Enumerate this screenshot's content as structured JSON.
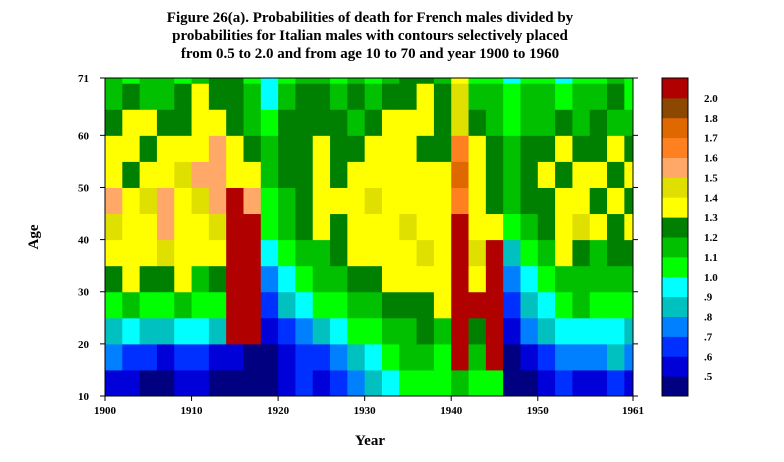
{
  "chart_data": {
    "type": "heatmap",
    "title": [
      "Figure 26(a). Probabilities of death for French males divided by",
      "probabilities for Italian males with contours selectively placed",
      "from 0.5 to 2.0 and from age 10 to 70 and year 1900 to 1960"
    ],
    "xlabel": "Year",
    "ylabel": "Age",
    "xlim": [
      1900,
      1961
    ],
    "ylim": [
      10,
      71
    ],
    "xticks": [
      1900,
      1910,
      1920,
      1930,
      1940,
      1950,
      1961
    ],
    "yticks": [
      10,
      20,
      30,
      40,
      50,
      60,
      71
    ],
    "xbins": [
      1900,
      1902,
      1904,
      1906,
      1908,
      1910,
      1912,
      1914,
      1916,
      1918,
      1920,
      1922,
      1924,
      1926,
      1928,
      1930,
      1932,
      1934,
      1936,
      1938,
      1940,
      1942,
      1944,
      1946,
      1948,
      1950,
      1952,
      1954,
      1956,
      1958,
      1960,
      1961
    ],
    "ybins": [
      10,
      15,
      20,
      25,
      30,
      35,
      40,
      45,
      50,
      55,
      60,
      65,
      70,
      71
    ],
    "values": [
      [
        0.55,
        0.55,
        0.45,
        0.45,
        0.55,
        0.55,
        0.45,
        0.45,
        0.45,
        0.45,
        0.55,
        0.65,
        0.55,
        0.65,
        0.75,
        0.85,
        0.95,
        1.05,
        1.05,
        1.05,
        1.15,
        1.05,
        1.05,
        0.45,
        0.45,
        0.55,
        0.65,
        0.55,
        0.55,
        0.65,
        0.55
      ],
      [
        0.75,
        0.65,
        0.65,
        0.55,
        0.65,
        0.65,
        0.55,
        0.55,
        0.45,
        0.45,
        0.55,
        0.65,
        0.65,
        0.75,
        0.85,
        0.95,
        1.05,
        1.15,
        1.15,
        1.05,
        2.1,
        1.15,
        2.1,
        0.45,
        0.55,
        0.65,
        0.75,
        0.75,
        0.75,
        0.85,
        0.75
      ],
      [
        0.85,
        0.95,
        0.85,
        0.85,
        0.95,
        0.95,
        0.85,
        2.1,
        2.1,
        0.55,
        0.65,
        0.75,
        0.85,
        0.95,
        1.05,
        1.05,
        1.15,
        1.15,
        1.25,
        1.15,
        2.1,
        1.25,
        2.1,
        0.55,
        0.75,
        0.85,
        0.95,
        0.95,
        0.95,
        0.95,
        0.85
      ],
      [
        1.05,
        1.15,
        1.05,
        1.05,
        1.15,
        1.05,
        1.05,
        2.1,
        2.1,
        0.65,
        0.85,
        0.95,
        1.05,
        1.05,
        1.15,
        1.15,
        1.25,
        1.25,
        1.25,
        1.35,
        2.1,
        2.1,
        2.1,
        0.65,
        0.85,
        0.95,
        1.05,
        1.15,
        1.05,
        1.05,
        1.05
      ],
      [
        1.25,
        1.35,
        1.25,
        1.25,
        1.35,
        1.15,
        1.25,
        2.1,
        2.1,
        0.75,
        0.95,
        1.05,
        1.15,
        1.15,
        1.25,
        1.25,
        1.35,
        1.35,
        1.35,
        1.35,
        2.1,
        1.35,
        2.1,
        0.75,
        0.95,
        1.05,
        1.15,
        1.15,
        1.15,
        1.15,
        1.15
      ],
      [
        1.35,
        1.35,
        1.35,
        1.45,
        1.35,
        1.35,
        1.35,
        2.1,
        2.1,
        0.95,
        1.05,
        1.15,
        1.15,
        1.25,
        1.35,
        1.35,
        1.35,
        1.35,
        1.45,
        1.35,
        2.1,
        1.45,
        2.1,
        0.85,
        1.05,
        1.15,
        1.35,
        1.25,
        1.15,
        1.25,
        1.25
      ],
      [
        1.45,
        1.35,
        1.35,
        1.55,
        1.35,
        1.35,
        1.45,
        2.1,
        2.1,
        1.05,
        1.15,
        1.25,
        1.35,
        1.25,
        1.35,
        1.35,
        1.35,
        1.45,
        1.35,
        1.35,
        2.1,
        1.35,
        1.35,
        1.05,
        1.15,
        1.25,
        1.35,
        1.45,
        1.35,
        1.25,
        1.35
      ],
      [
        1.55,
        1.35,
        1.45,
        1.55,
        1.35,
        1.45,
        1.55,
        2.1,
        1.55,
        1.05,
        1.15,
        1.25,
        1.35,
        1.35,
        1.35,
        1.45,
        1.35,
        1.35,
        1.35,
        1.35,
        1.65,
        1.35,
        1.25,
        1.15,
        1.25,
        1.25,
        1.35,
        1.35,
        1.25,
        1.35,
        1.25
      ],
      [
        1.35,
        1.25,
        1.35,
        1.35,
        1.45,
        1.55,
        1.55,
        1.35,
        1.35,
        1.15,
        1.25,
        1.25,
        1.35,
        1.25,
        1.35,
        1.35,
        1.35,
        1.35,
        1.35,
        1.35,
        1.75,
        1.35,
        1.25,
        1.15,
        1.25,
        1.35,
        1.25,
        1.35,
        1.35,
        1.25,
        1.35
      ],
      [
        1.35,
        1.35,
        1.25,
        1.35,
        1.35,
        1.35,
        1.55,
        1.35,
        1.25,
        1.15,
        1.25,
        1.25,
        1.35,
        1.25,
        1.25,
        1.35,
        1.35,
        1.35,
        1.25,
        1.25,
        1.65,
        1.35,
        1.25,
        1.15,
        1.25,
        1.25,
        1.35,
        1.25,
        1.25,
        1.35,
        1.25
      ],
      [
        1.25,
        1.35,
        1.35,
        1.25,
        1.25,
        1.35,
        1.35,
        1.25,
        1.15,
        1.05,
        1.25,
        1.25,
        1.25,
        1.25,
        1.15,
        1.25,
        1.35,
        1.35,
        1.35,
        1.25,
        1.45,
        1.25,
        1.15,
        1.05,
        1.15,
        1.15,
        1.25,
        1.15,
        1.25,
        1.15,
        1.15
      ],
      [
        1.15,
        1.25,
        1.15,
        1.15,
        1.25,
        1.35,
        1.25,
        1.25,
        1.15,
        0.95,
        1.15,
        1.25,
        1.25,
        1.15,
        1.25,
        1.15,
        1.25,
        1.25,
        1.35,
        1.25,
        1.45,
        1.15,
        1.15,
        1.05,
        1.15,
        1.15,
        1.05,
        1.15,
        1.15,
        1.25,
        1.05
      ],
      [
        1.15,
        1.05,
        1.15,
        1.15,
        1.05,
        1.15,
        1.25,
        1.25,
        1.05,
        0.95,
        1.05,
        1.15,
        1.15,
        1.05,
        1.15,
        1.05,
        1.15,
        1.25,
        1.25,
        1.15,
        1.35,
        1.05,
        1.05,
        0.95,
        1.05,
        1.05,
        0.95,
        1.05,
        1.05,
        1.15,
        1.05
      ]
    ],
    "colorbar": {
      "levels": [
        {
          "value": 0.5,
          "label": ".5"
        },
        {
          "value": 0.6,
          "label": ".6"
        },
        {
          "value": 0.7,
          "label": ".7"
        },
        {
          "value": 0.8,
          "label": ".8"
        },
        {
          "value": 0.9,
          "label": ".9"
        },
        {
          "value": 1.0,
          "label": "1.0"
        },
        {
          "value": 1.1,
          "label": "1.1"
        },
        {
          "value": 1.2,
          "label": "1.2"
        },
        {
          "value": 1.3,
          "label": "1.3"
        },
        {
          "value": 1.4,
          "label": "1.4"
        },
        {
          "value": 1.5,
          "label": "1.5"
        },
        {
          "value": 1.6,
          "label": "1.6"
        },
        {
          "value": 1.7,
          "label": "1.7"
        },
        {
          "value": 1.8,
          "label": "1.8"
        },
        {
          "value": 2.0,
          "label": "2.0"
        }
      ],
      "colors": [
        "#000080",
        "#0000d8",
        "#0030ff",
        "#0080ff",
        "#00c0c0",
        "#00ffff",
        "#00ff00",
        "#00c000",
        "#008000",
        "#ffff00",
        "#e0e000",
        "#ffa868",
        "#ff8020",
        "#e06800",
        "#8c4800",
        "#b00000"
      ]
    }
  }
}
